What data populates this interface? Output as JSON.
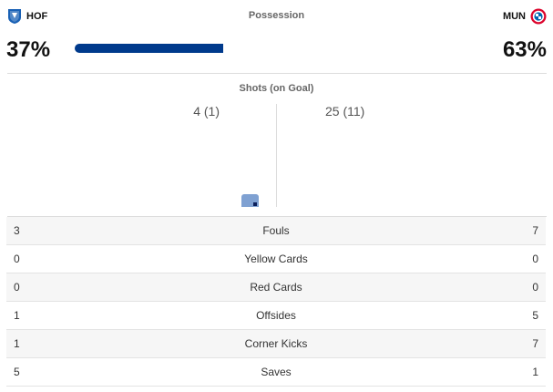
{
  "teams": {
    "home": {
      "abbr": "HOF",
      "color": "#1961b5"
    },
    "away": {
      "abbr": "MUN",
      "color": "#dc052d"
    }
  },
  "possession": {
    "title": "Possession",
    "home_pct": "37%",
    "away_pct": "63%",
    "home_share": 0.37,
    "home_color": "#003a8c"
  },
  "shots": {
    "title": "Shots (on Goal)",
    "home_label": "4 (1)",
    "away_label": "25 (11)",
    "home_total": 4,
    "home_on_goal": 1,
    "away_total": 25,
    "away_on_goal": 11,
    "bar_color": "#7fa1d2"
  },
  "stats": [
    {
      "label": "Fouls",
      "home": "3",
      "away": "7"
    },
    {
      "label": "Yellow Cards",
      "home": "0",
      "away": "0"
    },
    {
      "label": "Red Cards",
      "home": "0",
      "away": "0"
    },
    {
      "label": "Offsides",
      "home": "1",
      "away": "5"
    },
    {
      "label": "Corner Kicks",
      "home": "1",
      "away": "7"
    },
    {
      "label": "Saves",
      "home": "5",
      "away": "1"
    }
  ]
}
